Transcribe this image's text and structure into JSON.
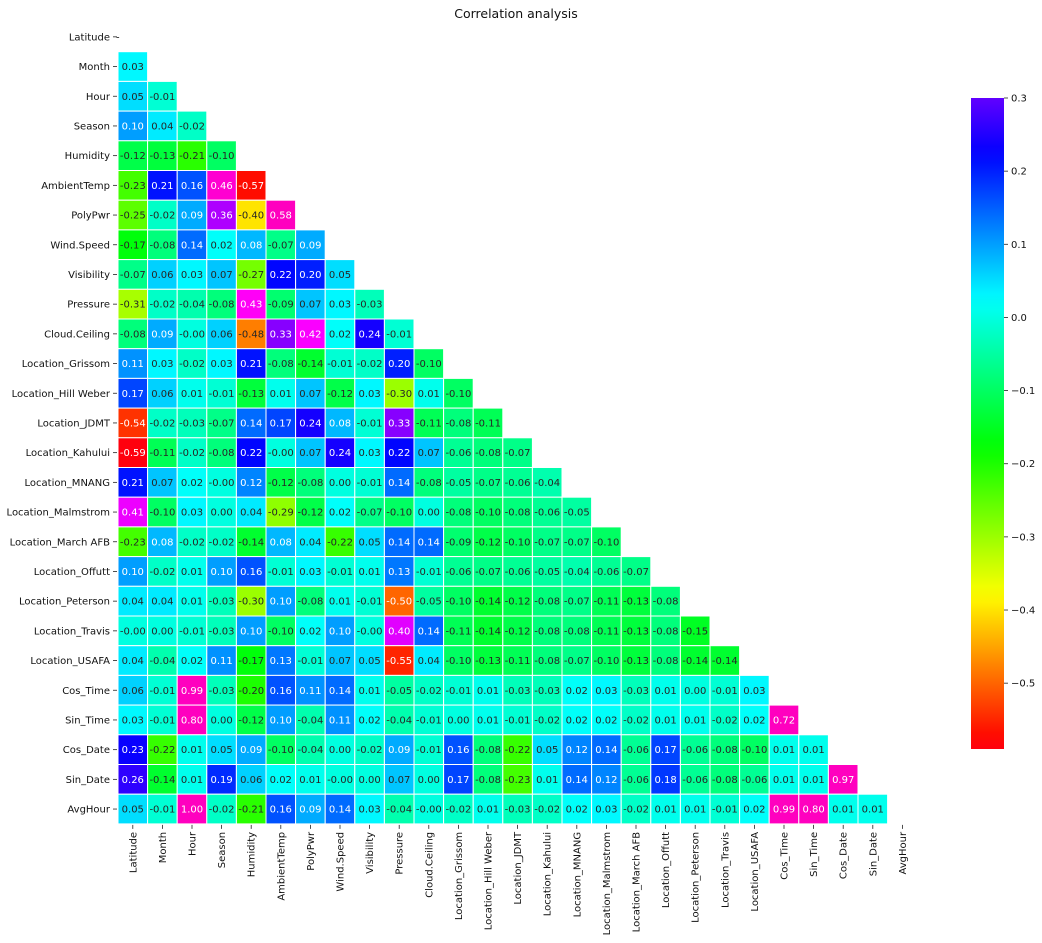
{
  "chart_data": {
    "type": "heatmap",
    "title": "Correlation analysis",
    "xlabel": "",
    "ylabel": "",
    "variables": [
      "Latitude",
      "Month",
      "Hour",
      "Season",
      "Humidity",
      "AmbientTemp",
      "PolyPwr",
      "Wind.Speed",
      "Visibility",
      "Pressure",
      "Cloud.Ceiling",
      "Location_Grissom",
      "Location_Hill Weber",
      "Location_JDMT",
      "Location_Kahului",
      "Location_MNANG",
      "Location_Malmstrom",
      "Location_March AFB",
      "Location_Offutt",
      "Location_Peterson",
      "Location_Travis",
      "Location_USAFA",
      "Cos_Time",
      "Sin_Time",
      "Cos_Date",
      "Sin_Date",
      "AvgHour"
    ],
    "mask": "upper-triangle-including-diagonal",
    "diagonal_label": "-",
    "lower_triangle_values": [
      [],
      [
        0.03
      ],
      [
        0.05,
        -0.01
      ],
      [
        0.1,
        0.04,
        -0.02
      ],
      [
        -0.12,
        -0.13,
        -0.21,
        -0.1
      ],
      [
        -0.23,
        0.21,
        0.16,
        0.46,
        -0.57
      ],
      [
        -0.25,
        -0.02,
        0.09,
        0.36,
        -0.4,
        0.58
      ],
      [
        -0.17,
        -0.08,
        0.14,
        0.02,
        0.08,
        -0.07,
        0.09
      ],
      [
        -0.07,
        0.06,
        0.03,
        0.07,
        -0.27,
        0.22,
        0.2,
        0.05
      ],
      [
        -0.31,
        -0.02,
        -0.04,
        -0.08,
        0.43,
        -0.09,
        0.07,
        0.03,
        -0.03
      ],
      [
        -0.08,
        0.09,
        -0.0,
        0.06,
        -0.48,
        0.33,
        0.42,
        0.02,
        0.24,
        -0.01
      ],
      [
        0.11,
        0.03,
        -0.02,
        0.03,
        0.21,
        -0.08,
        -0.14,
        -0.01,
        -0.02,
        0.2,
        -0.1
      ],
      [
        0.17,
        0.06,
        0.01,
        -0.01,
        -0.13,
        0.01,
        0.07,
        -0.12,
        0.03,
        -0.3,
        0.01,
        -0.1
      ],
      [
        -0.54,
        -0.02,
        -0.03,
        -0.07,
        0.14,
        0.17,
        0.24,
        0.08,
        -0.01,
        0.33,
        -0.11,
        -0.08,
        -0.11
      ],
      [
        -0.59,
        -0.11,
        -0.02,
        -0.08,
        0.22,
        -0.0,
        0.07,
        0.24,
        0.03,
        0.22,
        0.07,
        -0.06,
        -0.08,
        -0.07
      ],
      [
        0.21,
        0.07,
        0.02,
        -0.0,
        0.12,
        -0.12,
        -0.08,
        0.0,
        -0.01,
        0.14,
        -0.08,
        -0.05,
        -0.07,
        -0.06,
        -0.04
      ],
      [
        0.41,
        -0.1,
        0.03,
        0.0,
        0.04,
        -0.29,
        -0.12,
        0.02,
        -0.07,
        -0.1,
        0.0,
        -0.08,
        -0.1,
        -0.08,
        -0.06,
        -0.05
      ],
      [
        -0.23,
        0.08,
        -0.02,
        -0.02,
        -0.14,
        0.08,
        0.04,
        -0.22,
        0.05,
        0.14,
        0.14,
        -0.09,
        -0.12,
        -0.1,
        -0.07,
        -0.07,
        -0.1
      ],
      [
        0.1,
        -0.02,
        0.01,
        0.1,
        0.16,
        -0.01,
        0.03,
        -0.01,
        0.01,
        0.13,
        -0.01,
        -0.06,
        -0.07,
        -0.06,
        -0.05,
        -0.04,
        -0.06,
        -0.07
      ],
      [
        0.04,
        0.04,
        0.01,
        -0.03,
        -0.3,
        0.1,
        -0.08,
        0.01,
        -0.01,
        -0.5,
        -0.05,
        -0.1,
        -0.14,
        -0.12,
        -0.08,
        -0.07,
        -0.11,
        -0.13,
        -0.08
      ],
      [
        -0.0,
        0.0,
        -0.01,
        -0.03,
        0.1,
        -0.1,
        0.02,
        0.1,
        -0.0,
        0.4,
        0.14,
        -0.11,
        -0.14,
        -0.12,
        -0.08,
        -0.08,
        -0.11,
        -0.13,
        -0.08,
        -0.15
      ],
      [
        0.04,
        -0.04,
        0.02,
        0.11,
        -0.17,
        0.13,
        -0.01,
        0.07,
        0.05,
        -0.55,
        0.04,
        -0.1,
        -0.13,
        -0.11,
        -0.08,
        -0.07,
        -0.1,
        -0.13,
        -0.08,
        -0.14,
        -0.14
      ],
      [
        0.06,
        -0.01,
        0.99,
        -0.03,
        -0.2,
        0.16,
        0.11,
        0.14,
        0.01,
        -0.05,
        -0.02,
        -0.01,
        0.01,
        -0.03,
        -0.03,
        0.02,
        0.03,
        -0.03,
        0.01,
        0.0,
        -0.01,
        0.03
      ],
      [
        0.03,
        -0.01,
        0.8,
        0.0,
        -0.12,
        0.1,
        -0.04,
        0.11,
        0.02,
        -0.04,
        -0.01,
        0.0,
        0.01,
        -0.01,
        -0.02,
        0.02,
        0.02,
        -0.02,
        0.01,
        0.01,
        -0.02,
        0.02,
        0.72
      ],
      [
        0.23,
        -0.22,
        0.01,
        0.05,
        0.09,
        -0.1,
        -0.04,
        0.0,
        -0.02,
        0.09,
        -0.01,
        0.16,
        -0.08,
        -0.22,
        0.05,
        0.12,
        0.14,
        -0.06,
        0.17,
        -0.06,
        -0.08,
        -0.1,
        0.01,
        0.01
      ],
      [
        0.26,
        -0.14,
        0.01,
        0.19,
        0.06,
        0.02,
        0.01,
        -0.0,
        0.0,
        0.07,
        0.0,
        0.17,
        -0.08,
        -0.23,
        0.01,
        0.14,
        0.12,
        -0.06,
        0.18,
        -0.06,
        -0.08,
        -0.06,
        0.01,
        0.01,
        0.97
      ],
      [
        0.05,
        -0.01,
        1.0,
        -0.02,
        -0.21,
        0.16,
        0.09,
        0.14,
        0.03,
        -0.04,
        -0.0,
        -0.02,
        0.01,
        -0.03,
        -0.02,
        0.02,
        0.03,
        -0.02,
        0.01,
        0.01,
        -0.01,
        0.02,
        0.99,
        0.8,
        0.01,
        0.01
      ]
    ],
    "colormap": "gist_rainbow",
    "vmin": -0.59,
    "vmax": 0.3,
    "colorbar_ticks": [
      0.3,
      0.2,
      0.1,
      0.0,
      -0.1,
      -0.2,
      -0.3,
      -0.4,
      -0.5
    ],
    "colorbar_tick_labels": [
      "0.3",
      "0.2",
      "0.1",
      "0.0",
      "−0.1",
      "−0.2",
      "−0.3",
      "−0.4",
      "−0.5"
    ],
    "colorbar_position": "right",
    "annotations": "cell values shown with two decimals",
    "grid": false,
    "cell_border_color": "#ffffff"
  }
}
